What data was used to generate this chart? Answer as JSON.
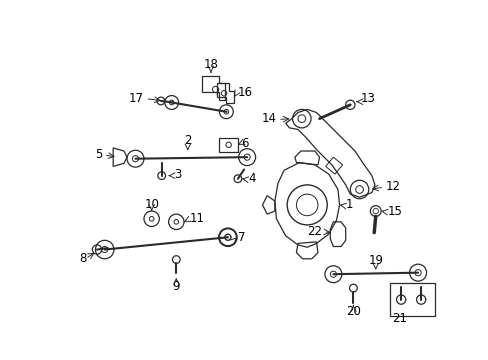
{
  "bg_color": "#ffffff",
  "line_color": "#2a2a2a",
  "label_color": "#000000",
  "fontsize": 8.5
}
